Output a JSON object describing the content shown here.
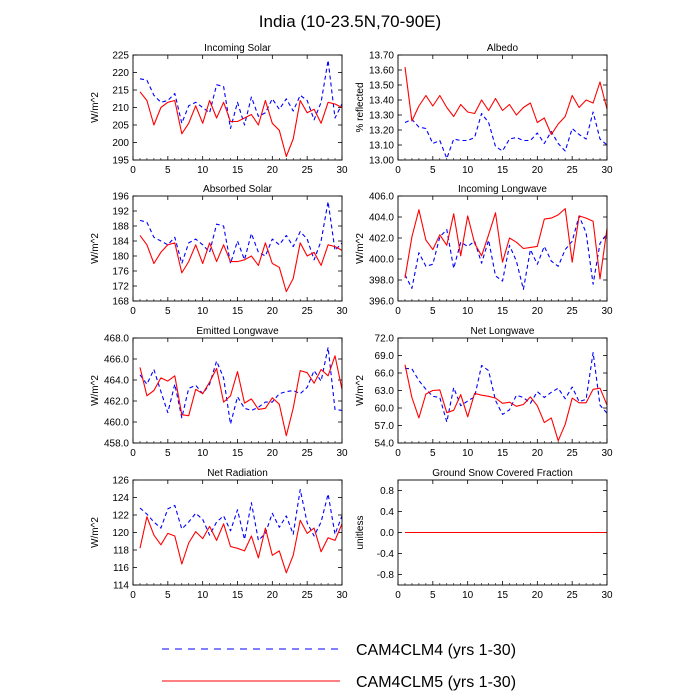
{
  "page": {
    "title": "India (10-23.5N,70-90E)",
    "legend": [
      {
        "label": "CAM4CLM4 (yrs 1-30)",
        "color": "#0000ff",
        "dash": true
      },
      {
        "label": "CAM4CLM5 (yrs 1-30)",
        "color": "#ff0000",
        "dash": false
      }
    ]
  },
  "chart_data": [
    {
      "type": "line",
      "title": "Incoming Solar",
      "ylabel": "W/m^2",
      "xlim": [
        0,
        30
      ],
      "ylim": [
        195,
        225
      ],
      "xticks": [
        0,
        5,
        10,
        15,
        20,
        25,
        30
      ],
      "yticks": [
        195,
        200,
        205,
        210,
        215,
        220,
        225
      ],
      "ytick_labels": [
        "195",
        "200",
        "205",
        "210",
        "215",
        "220",
        "225"
      ],
      "x": [
        1,
        2,
        3,
        4,
        5,
        6,
        7,
        8,
        9,
        10,
        11,
        12,
        13,
        14,
        15,
        16,
        17,
        18,
        19,
        20,
        21,
        22,
        23,
        24,
        25,
        26,
        27,
        28,
        29,
        30
      ],
      "series": [
        {
          "name": "CAM4CLM4 (yrs 1-30)",
          "color": "#0000ff",
          "dash": true,
          "values": [
            218.2,
            217.8,
            213.5,
            211.5,
            212,
            214,
            205.5,
            210.5,
            211.5,
            210,
            208.5,
            216.5,
            216,
            204,
            211.5,
            205,
            213,
            207.5,
            208.5,
            212.5,
            209.5,
            212.5,
            209,
            213.5,
            212,
            206.5,
            211.5,
            223.5,
            207,
            211
          ]
        },
        {
          "name": "CAM4CLM5 (yrs 1-30)",
          "color": "#ff0000",
          "dash": false,
          "values": [
            214.5,
            212,
            205,
            210,
            211.5,
            212,
            202.5,
            205.5,
            210.5,
            205.5,
            212,
            207,
            211.5,
            206,
            206,
            207,
            208,
            205,
            212,
            205.5,
            203.5,
            196,
            201,
            212,
            208.5,
            209.5,
            205.5,
            211.5,
            211,
            210
          ]
        }
      ]
    },
    {
      "type": "line",
      "title": "Albedo",
      "ylabel": "% reflected",
      "xlim": [
        0,
        30
      ],
      "ylim": [
        13.0,
        13.7
      ],
      "xticks": [
        0,
        5,
        10,
        15,
        20,
        25,
        30
      ],
      "yticks": [
        13.0,
        13.1,
        13.2,
        13.3,
        13.4,
        13.5,
        13.6,
        13.7
      ],
      "ytick_labels": [
        "13.00",
        "13.10",
        "13.20",
        "13.30",
        "13.40",
        "13.50",
        "13.60",
        "13.70"
      ],
      "x": [
        1,
        2,
        3,
        4,
        5,
        6,
        7,
        8,
        9,
        10,
        11,
        12,
        13,
        14,
        15,
        16,
        17,
        18,
        19,
        20,
        21,
        22,
        23,
        24,
        25,
        26,
        27,
        28,
        29,
        30
      ],
      "series": [
        {
          "name": "CAM4CLM4 (yrs 1-30)",
          "color": "#0000ff",
          "dash": true,
          "values": [
            13.25,
            13.27,
            13.22,
            13.21,
            13.11,
            13.13,
            13.01,
            13.14,
            13.13,
            13.13,
            13.15,
            13.31,
            13.25,
            13.09,
            13.06,
            13.14,
            13.15,
            13.13,
            13.13,
            13.18,
            13.11,
            13.19,
            13.11,
            13.06,
            13.21,
            13.17,
            13.14,
            13.32,
            13.14,
            13.1
          ]
        },
        {
          "name": "CAM4CLM5 (yrs 1-30)",
          "color": "#ff0000",
          "dash": false,
          "values": [
            13.62,
            13.26,
            13.36,
            13.43,
            13.36,
            13.43,
            13.35,
            13.29,
            13.37,
            13.32,
            13.31,
            13.4,
            13.33,
            13.41,
            13.33,
            13.37,
            13.3,
            13.35,
            13.38,
            13.25,
            13.28,
            13.17,
            13.24,
            13.29,
            13.43,
            13.35,
            13.4,
            13.38,
            13.52,
            13.34
          ]
        }
      ]
    },
    {
      "type": "line",
      "title": "Absorbed Solar",
      "ylabel": "W/m^2",
      "xlim": [
        0,
        30
      ],
      "ylim": [
        168,
        196
      ],
      "xticks": [
        0,
        5,
        10,
        15,
        20,
        25,
        30
      ],
      "yticks": [
        168,
        172,
        176,
        180,
        184,
        188,
        192,
        196
      ],
      "ytick_labels": [
        "168",
        "172",
        "176",
        "180",
        "184",
        "188",
        "192",
        "196"
      ],
      "x": [
        1,
        2,
        3,
        4,
        5,
        6,
        7,
        8,
        9,
        10,
        11,
        12,
        13,
        14,
        15,
        16,
        17,
        18,
        19,
        20,
        21,
        22,
        23,
        24,
        25,
        26,
        27,
        28,
        29,
        30
      ],
      "series": [
        {
          "name": "CAM4CLM4 (yrs 1-30)",
          "color": "#0000ff",
          "dash": true,
          "values": [
            189.5,
            189,
            185,
            184,
            183,
            185,
            178,
            183.5,
            184.5,
            183,
            181,
            188.5,
            188,
            178,
            184,
            179,
            186,
            181,
            180,
            184.5,
            183,
            185.5,
            182.5,
            186.5,
            184.5,
            179,
            184,
            194.5,
            181.5,
            183.5
          ]
        },
        {
          "name": "CAM4CLM5 (yrs 1-30)",
          "color": "#ff0000",
          "dash": false,
          "values": [
            185.5,
            183,
            178,
            181,
            183,
            183.5,
            175.5,
            178.5,
            183,
            178,
            183.5,
            178.5,
            183,
            178.5,
            178.5,
            179,
            180,
            177.5,
            183.5,
            178,
            177,
            170.5,
            174,
            183.5,
            180,
            181,
            177.5,
            183,
            182.5,
            181.5
          ]
        }
      ]
    },
    {
      "type": "line",
      "title": "Incoming Longwave",
      "ylabel": "W/m^2",
      "xlim": [
        0,
        30
      ],
      "ylim": [
        396,
        406
      ],
      "xticks": [
        0,
        5,
        10,
        15,
        20,
        25,
        30
      ],
      "yticks": [
        396,
        398,
        400,
        402,
        404,
        406
      ],
      "ytick_labels": [
        "396.0",
        "398.0",
        "400.0",
        "402.0",
        "404.0",
        "406.0"
      ],
      "x": [
        1,
        2,
        3,
        4,
        5,
        6,
        7,
        8,
        9,
        10,
        11,
        12,
        13,
        14,
        15,
        16,
        17,
        18,
        19,
        20,
        21,
        22,
        23,
        24,
        25,
        26,
        27,
        28,
        29,
        30
      ],
      "series": [
        {
          "name": "CAM4CLM4 (yrs 1-30)",
          "color": "#0000ff",
          "dash": true,
          "values": [
            398.5,
            397.2,
            400.6,
            399.3,
            399.5,
            402.1,
            402.8,
            399.1,
            401.6,
            401.2,
            401.7,
            399.6,
            401.8,
            398.4,
            397.9,
            401.3,
            399.8,
            397.1,
            400.9,
            399.5,
            401.2,
            399.8,
            399.3,
            400.9,
            401.7,
            404.1,
            402.5,
            397.6,
            401.5,
            402.4
          ]
        },
        {
          "name": "CAM4CLM5 (yrs 1-30)",
          "color": "#ff0000",
          "dash": false,
          "values": [
            398.2,
            402.1,
            404.7,
            401.8,
            400.9,
            402.3,
            401.3,
            404.3,
            400.3,
            404.1,
            401.5,
            400.3,
            402.3,
            404.4,
            399.7,
            402,
            401.6,
            401,
            401.1,
            401.2,
            403.8,
            403.9,
            404.2,
            404.8,
            399.7,
            404.1,
            403.9,
            403.6,
            398.1,
            402.9
          ]
        }
      ]
    },
    {
      "type": "line",
      "title": "Emitted Longwave",
      "ylabel": "W/m^2",
      "xlim": [
        0,
        30
      ],
      "ylim": [
        458,
        468
      ],
      "xticks": [
        0,
        5,
        10,
        15,
        20,
        25,
        30
      ],
      "yticks": [
        458,
        460,
        462,
        464,
        466,
        468
      ],
      "ytick_labels": [
        "458.0",
        "460.0",
        "462.0",
        "464.0",
        "466.0",
        "468.0"
      ],
      "x": [
        1,
        2,
        3,
        4,
        5,
        6,
        7,
        8,
        9,
        10,
        11,
        12,
        13,
        14,
        15,
        16,
        17,
        18,
        19,
        20,
        21,
        22,
        23,
        24,
        25,
        26,
        27,
        28,
        29,
        30
      ],
      "series": [
        {
          "name": "CAM4CLM4 (yrs 1-30)",
          "color": "#0000ff",
          "dash": true,
          "values": [
            464.5,
            463.6,
            465,
            462.9,
            460.9,
            463.6,
            460.4,
            463.2,
            463.5,
            462.7,
            463.6,
            465.8,
            464.2,
            459.8,
            462.4,
            461.3,
            461.1,
            461.4,
            461.9,
            461.9,
            462.7,
            462.9,
            463,
            462.7,
            463.3,
            464.9,
            463.9,
            467.1,
            461.2,
            461.1
          ]
        },
        {
          "name": "CAM4CLM5 (yrs 1-30)",
          "color": "#ff0000",
          "dash": false,
          "values": [
            465.2,
            462.5,
            463,
            464.2,
            463.9,
            464.4,
            460.7,
            460.6,
            463.1,
            462.7,
            463.8,
            465.1,
            461.9,
            462.5,
            464.8,
            461.8,
            462.2,
            461.2,
            461.3,
            462.3,
            461.7,
            458.7,
            461.3,
            464.9,
            464.7,
            463.7,
            465,
            464.4,
            466.3,
            463.1
          ]
        }
      ]
    },
    {
      "type": "line",
      "title": "Net Longwave",
      "ylabel": "W/m^2",
      "xlim": [
        0,
        30
      ],
      "ylim": [
        54,
        72
      ],
      "xticks": [
        0,
        5,
        10,
        15,
        20,
        25,
        30
      ],
      "yticks": [
        54,
        57,
        60,
        63,
        66,
        69,
        72
      ],
      "ytick_labels": [
        "54.0",
        "57.0",
        "60.0",
        "63.0",
        "66.0",
        "69.0",
        "72.0"
      ],
      "x": [
        1,
        2,
        3,
        4,
        5,
        6,
        7,
        8,
        9,
        10,
        11,
        12,
        13,
        14,
        15,
        16,
        17,
        18,
        19,
        20,
        21,
        22,
        23,
        24,
        25,
        26,
        27,
        28,
        29,
        30
      ],
      "series": [
        {
          "name": "CAM4CLM4 (yrs 1-30)",
          "color": "#0000ff",
          "dash": true,
          "values": [
            66.8,
            66.7,
            64.7,
            63.2,
            62,
            61.8,
            57.6,
            63.5,
            60.4,
            61.2,
            61.9,
            67.3,
            66.4,
            61.3,
            58.9,
            59.7,
            62.2,
            61.8,
            60.8,
            62.8,
            61.8,
            62.7,
            63.4,
            61.6,
            63.6,
            61.1,
            61.5,
            69.5,
            60.5,
            59.1
          ]
        },
        {
          "name": "CAM4CLM5 (yrs 1-30)",
          "color": "#ff0000",
          "dash": false,
          "values": [
            67.4,
            61.8,
            58.3,
            62.4,
            63,
            63.1,
            59.2,
            59.6,
            62.3,
            58.5,
            62.5,
            62.2,
            62,
            61.7,
            60.8,
            61,
            60.3,
            60.6,
            61.9,
            60.4,
            57.5,
            58.3,
            54.4,
            57.2,
            61.7,
            60.9,
            60.9,
            63.2,
            63.4,
            60.5
          ]
        }
      ]
    },
    {
      "type": "line",
      "title": "Net Radiation",
      "ylabel": "W/m^2",
      "xlim": [
        0,
        30
      ],
      "ylim": [
        114,
        126
      ],
      "xticks": [
        0,
        5,
        10,
        15,
        20,
        25,
        30
      ],
      "yticks": [
        114,
        116,
        118,
        120,
        122,
        124,
        126
      ],
      "ytick_labels": [
        "114",
        "116",
        "118",
        "120",
        "122",
        "124",
        "126"
      ],
      "x": [
        1,
        2,
        3,
        4,
        5,
        6,
        7,
        8,
        9,
        10,
        11,
        12,
        13,
        14,
        15,
        16,
        17,
        18,
        19,
        20,
        21,
        22,
        23,
        24,
        25,
        26,
        27,
        28,
        29,
        30
      ],
      "series": [
        {
          "name": "CAM4CLM4 (yrs 1-30)",
          "color": "#0000ff",
          "dash": true,
          "values": [
            122.8,
            122.1,
            121.2,
            120.5,
            122.7,
            123.1,
            120.4,
            121.2,
            122.2,
            121.5,
            119.7,
            121.2,
            121.9,
            120.2,
            122.6,
            119.2,
            123.4,
            119.1,
            119.9,
            122.2,
            120.6,
            121.9,
            119.8,
            124.9,
            121.1,
            119.6,
            121.2,
            124.4,
            119.8,
            121.9
          ]
        },
        {
          "name": "CAM4CLM5 (yrs 1-30)",
          "color": "#ff0000",
          "dash": false,
          "values": [
            118.2,
            121.8,
            119.7,
            118.6,
            119.9,
            119.6,
            116.4,
            118.8,
            120.1,
            119.3,
            120.7,
            119.1,
            121,
            118.4,
            118.2,
            117.9,
            119.6,
            117.1,
            120.5,
            117.4,
            117.9,
            115.4,
            117.4,
            121.4,
            119.9,
            120.5,
            117.8,
            119.4,
            119.1,
            121
          ]
        }
      ]
    },
    {
      "type": "line",
      "title": "Ground Snow Covered Fraction",
      "ylabel": "unitless",
      "xlim": [
        0,
        30
      ],
      "ylim": [
        -1,
        1
      ],
      "xticks": [
        0,
        5,
        10,
        15,
        20,
        25,
        30
      ],
      "yticks": [
        -0.8,
        -0.4,
        0.0,
        0.4,
        0.8
      ],
      "ytick_labels": [
        "-0.8",
        "-0.4",
        "0.0",
        "0.4",
        "0.8"
      ],
      "x": [
        1,
        2,
        3,
        4,
        5,
        6,
        7,
        8,
        9,
        10,
        11,
        12,
        13,
        14,
        15,
        16,
        17,
        18,
        19,
        20,
        21,
        22,
        23,
        24,
        25,
        26,
        27,
        28,
        29,
        30
      ],
      "series": [
        {
          "name": "CAM4CLM4 (yrs 1-30)",
          "color": "#0000ff",
          "dash": true,
          "values": [
            0,
            0,
            0,
            0,
            0,
            0,
            0,
            0,
            0,
            0,
            0,
            0,
            0,
            0,
            0,
            0,
            0,
            0,
            0,
            0,
            0,
            0,
            0,
            0,
            0,
            0,
            0,
            0,
            0,
            0
          ]
        },
        {
          "name": "CAM4CLM5 (yrs 1-30)",
          "color": "#ff0000",
          "dash": false,
          "values": [
            0,
            0,
            0,
            0,
            0,
            0,
            0,
            0,
            0,
            0,
            0,
            0,
            0,
            0,
            0,
            0,
            0,
            0,
            0,
            0,
            0,
            0,
            0,
            0,
            0,
            0,
            0,
            0,
            0,
            0
          ]
        }
      ]
    }
  ]
}
